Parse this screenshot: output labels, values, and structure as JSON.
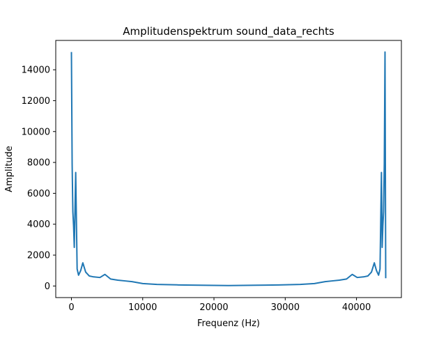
{
  "chart_data": {
    "type": "line",
    "title": "Amplitudenspektrum sound_data_rechts",
    "xlabel": "Frequenz (Hz)",
    "ylabel": "Amplitude",
    "xlim": [
      -2200,
      46300
    ],
    "ylim": [
      -750,
      15900
    ],
    "xticks": [
      0,
      10000,
      20000,
      30000,
      40000
    ],
    "yticks": [
      0,
      2000,
      4000,
      6000,
      8000,
      10000,
      12000,
      14000
    ],
    "grid": false,
    "legend": "none",
    "series": [
      {
        "color": "#1f77b4",
        "x": [
          0,
          100,
          200,
          300,
          400,
          600,
          800,
          1000,
          1300,
          1600,
          2000,
          2500,
          3000,
          4000,
          4700,
          5500,
          6500,
          7500,
          8500,
          10000,
          12000,
          15000,
          18000,
          20000,
          22050,
          24100,
          26100,
          29100,
          32100,
          34100,
          35600,
          36600,
          37600,
          38600,
          39400,
          40100,
          41100,
          41600,
          42100,
          42500,
          42800,
          43100,
          43300,
          43500,
          43600,
          43700,
          43800,
          43900,
          44000,
          44100
        ],
        "y": [
          15150,
          7900,
          4800,
          3900,
          2500,
          7350,
          1100,
          700,
          1000,
          1500,
          900,
          650,
          600,
          550,
          750,
          450,
          380,
          330,
          280,
          160,
          100,
          70,
          50,
          40,
          30,
          40,
          50,
          70,
          100,
          160,
          280,
          330,
          380,
          450,
          750,
          550,
          600,
          650,
          900,
          1500,
          1000,
          700,
          1100,
          7350,
          2500,
          3900,
          4800,
          7900,
          15150,
          500
        ]
      }
    ]
  }
}
